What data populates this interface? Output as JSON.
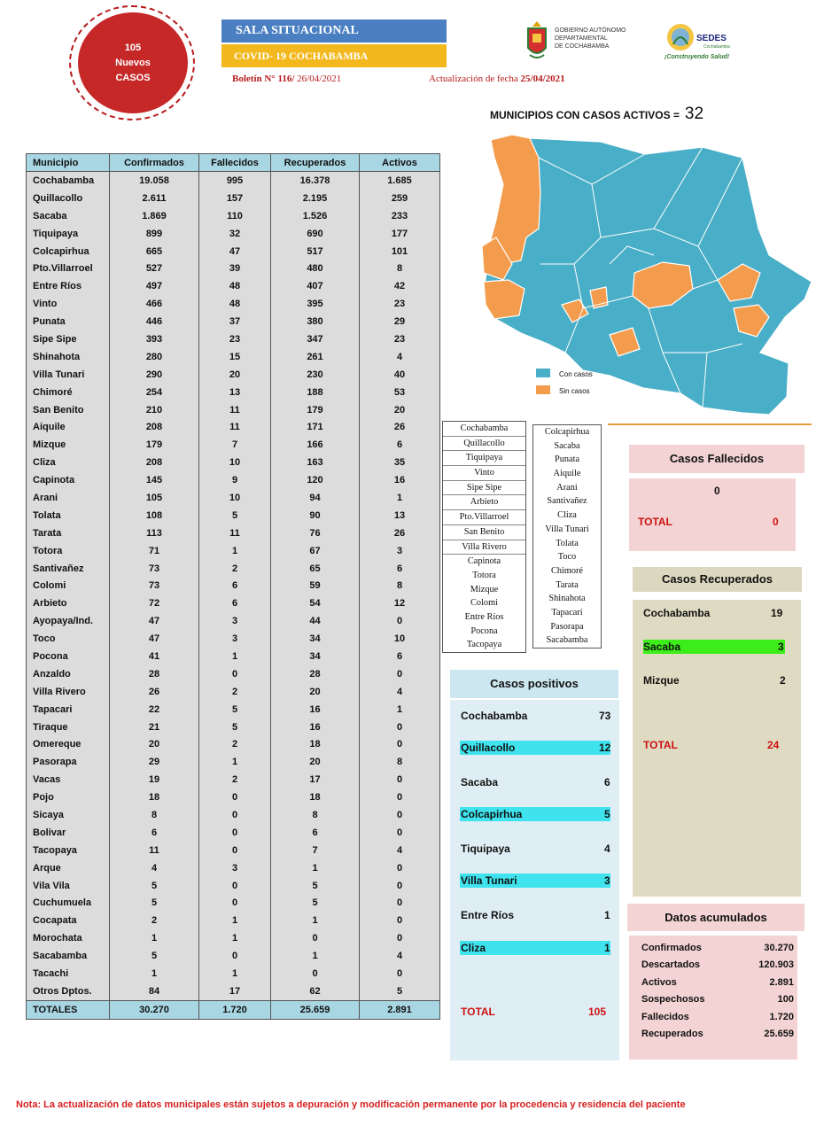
{
  "header": {
    "badge_line1": "105",
    "badge_line2": "Nuevos",
    "badge_line3": "CASOS",
    "title1": "SALA SITUACIONAL",
    "title2": "COVID- 19 COCHABAMBA",
    "boletin_prefix": "Boletín N° 116/",
    "boletin_date": " 26/04/2021",
    "actual_prefix": "Actualización de fecha ",
    "actual_date": "25/04/2021",
    "gov_line1": "GOBIERNO AUTÓNOMO",
    "gov_line2": "DEPARTAMENTAL",
    "gov_line3": "DE COCHABAMBA",
    "sedes_name": "SEDES",
    "sedes_sub": "Cochabamba",
    "sedes_slogan": "¡Construyendo Salud!"
  },
  "map": {
    "title": "MUNICIPIOS CON CASOS ACTIVOS =",
    "count": "32",
    "legend_with": "Con casos",
    "legend_without": "Sin casos",
    "color_with": "#49aec7",
    "color_without": "#f39c4d"
  },
  "table": {
    "headers": [
      "Municipio",
      "Confirmados",
      "Fallecidos",
      "Recuperados",
      "Activos"
    ],
    "rows": [
      [
        "Cochabamba",
        "19.058",
        "995",
        "16.378",
        "1.685"
      ],
      [
        "Quillacollo",
        "2.611",
        "157",
        "2.195",
        "259"
      ],
      [
        "Sacaba",
        "1.869",
        "110",
        "1.526",
        "233"
      ],
      [
        "Tiquipaya",
        "899",
        "32",
        "690",
        "177"
      ],
      [
        "Colcapirhua",
        "665",
        "47",
        "517",
        "101"
      ],
      [
        "Pto.Villarroel",
        "527",
        "39",
        "480",
        "8"
      ],
      [
        "Entre Ríos",
        "497",
        "48",
        "407",
        "42"
      ],
      [
        "Vinto",
        "466",
        "48",
        "395",
        "23"
      ],
      [
        "Punata",
        "446",
        "37",
        "380",
        "29"
      ],
      [
        "Sipe Sipe",
        "393",
        "23",
        "347",
        "23"
      ],
      [
        "Shinahota",
        "280",
        "15",
        "261",
        "4"
      ],
      [
        "Villa Tunari",
        "290",
        "20",
        "230",
        "40"
      ],
      [
        "Chimoré",
        "254",
        "13",
        "188",
        "53"
      ],
      [
        "San Benito",
        "210",
        "11",
        "179",
        "20"
      ],
      [
        "Aiquile",
        "208",
        "11",
        "171",
        "26"
      ],
      [
        "Mizque",
        "179",
        "7",
        "166",
        "6"
      ],
      [
        "Cliza",
        "208",
        "10",
        "163",
        "35"
      ],
      [
        "Capinota",
        "145",
        "9",
        "120",
        "16"
      ],
      [
        "Arani",
        "105",
        "10",
        "94",
        "1"
      ],
      [
        "Tolata",
        "108",
        "5",
        "90",
        "13"
      ],
      [
        "Tarata",
        "113",
        "11",
        "76",
        "26"
      ],
      [
        "Totora",
        "71",
        "1",
        "67",
        "3"
      ],
      [
        "Santivañez",
        "73",
        "2",
        "65",
        "6"
      ],
      [
        "Colomi",
        "73",
        "6",
        "59",
        "8"
      ],
      [
        "Arbieto",
        "72",
        "6",
        "54",
        "12"
      ],
      [
        "Ayopaya/Ind.",
        "47",
        "3",
        "44",
        "0"
      ],
      [
        "Toco",
        "47",
        "3",
        "34",
        "10"
      ],
      [
        "Pocona",
        "41",
        "1",
        "34",
        "6"
      ],
      [
        "Anzaldo",
        "28",
        "0",
        "28",
        "0"
      ],
      [
        "Villa Rivero",
        "26",
        "2",
        "20",
        "4"
      ],
      [
        "Tapacari",
        "22",
        "5",
        "16",
        "1"
      ],
      [
        "Tiraque",
        "21",
        "5",
        "16",
        "0"
      ],
      [
        "Omereque",
        "20",
        "2",
        "18",
        "0"
      ],
      [
        "Pasorapa",
        "29",
        "1",
        "20",
        "8"
      ],
      [
        "Vacas",
        "19",
        "2",
        "17",
        "0"
      ],
      [
        "Pojo",
        "18",
        "0",
        "18",
        "0"
      ],
      [
        "Sicaya",
        "8",
        "0",
        "8",
        "0"
      ],
      [
        "Bolivar",
        "6",
        "0",
        "6",
        "0"
      ],
      [
        "Tacopaya",
        "11",
        "0",
        "7",
        "4"
      ],
      [
        "Arque",
        "4",
        "3",
        "1",
        "0"
      ],
      [
        "Vila Vila",
        "5",
        "0",
        "5",
        "0"
      ],
      [
        "Cuchumuela",
        "5",
        "0",
        "5",
        "0"
      ],
      [
        "Cocapata",
        "2",
        "1",
        "1",
        "0"
      ],
      [
        "Morochata",
        "1",
        "1",
        "0",
        "0"
      ],
      [
        "Sacabamba",
        "5",
        "0",
        "1",
        "4"
      ],
      [
        "Tacachi",
        "1",
        "1",
        "0",
        "0"
      ],
      [
        "Otros Dptos.",
        "84",
        "17",
        "62",
        "5"
      ]
    ],
    "totals": [
      "TOTALES",
      "30.270",
      "1.720",
      "25.659",
      "2.891"
    ]
  },
  "with_cases_list": [
    "Cochabamba",
    "Quillacollo",
    "Tiquipaya",
    "Vinto",
    "Sipe Sipe",
    "Arbieto",
    "Pto.Villarroel",
    "San Benito",
    "Villa Rivero",
    "Capinota",
    "Totora",
    "Mizque",
    "Colomi",
    "Entre Ríos",
    "Pocona",
    "Tacopaya"
  ],
  "without_cases_list": [
    "Colcapirhua",
    "Sacaba",
    "Punata",
    "Aiquile",
    "Arani",
    "Santivañez",
    "Cliza",
    "Villa Tunari",
    "Tolata",
    "Toco",
    "Chimoré",
    "Tarata",
    "Shinahota",
    "Tapacarí",
    "Pasorapa",
    "Sacabamba"
  ],
  "fallecidos": {
    "title": "Casos Fallecidos",
    "value": "0",
    "total_label": "TOTAL",
    "total_value": "0"
  },
  "recuperados": {
    "title": "Casos Recuperados",
    "items": [
      {
        "name": "Cochabamba",
        "value": "19"
      },
      {
        "name": "Sacaba",
        "value": "3"
      },
      {
        "name": "Mizque",
        "value": "2"
      }
    ],
    "total_label": "TOTAL",
    "total_value": "24"
  },
  "positivos": {
    "title": "Casos positivos",
    "items": [
      {
        "name": "Cochabamba",
        "value": "73"
      },
      {
        "name": "Quillacollo",
        "value": "12"
      },
      {
        "name": "Sacaba",
        "value": "6"
      },
      {
        "name": "Colcapirhua",
        "value": "5"
      },
      {
        "name": "Tiquipaya",
        "value": "4"
      },
      {
        "name": "Villa Tunari",
        "value": "3"
      },
      {
        "name": "Entre Ríos",
        "value": "1"
      },
      {
        "name": "Cliza",
        "value": "1"
      }
    ],
    "total_label": "TOTAL",
    "total_value": "105"
  },
  "acumulados": {
    "title": "Datos acumulados",
    "items": [
      {
        "name": "Confirmados",
        "value": "30.270"
      },
      {
        "name": "Descartados",
        "value": "120.903"
      },
      {
        "name": "Activos",
        "value": "2.891"
      },
      {
        "name": "Sospechosos",
        "value": "100"
      },
      {
        "name": "Fallecidos",
        "value": "1.720"
      },
      {
        "name": "Recuperados",
        "value": "25.659"
      }
    ]
  },
  "note": "Nota: La actualización de datos municipales están sujetos a depuración y modificación permanente por la procedencia y residencia del paciente"
}
